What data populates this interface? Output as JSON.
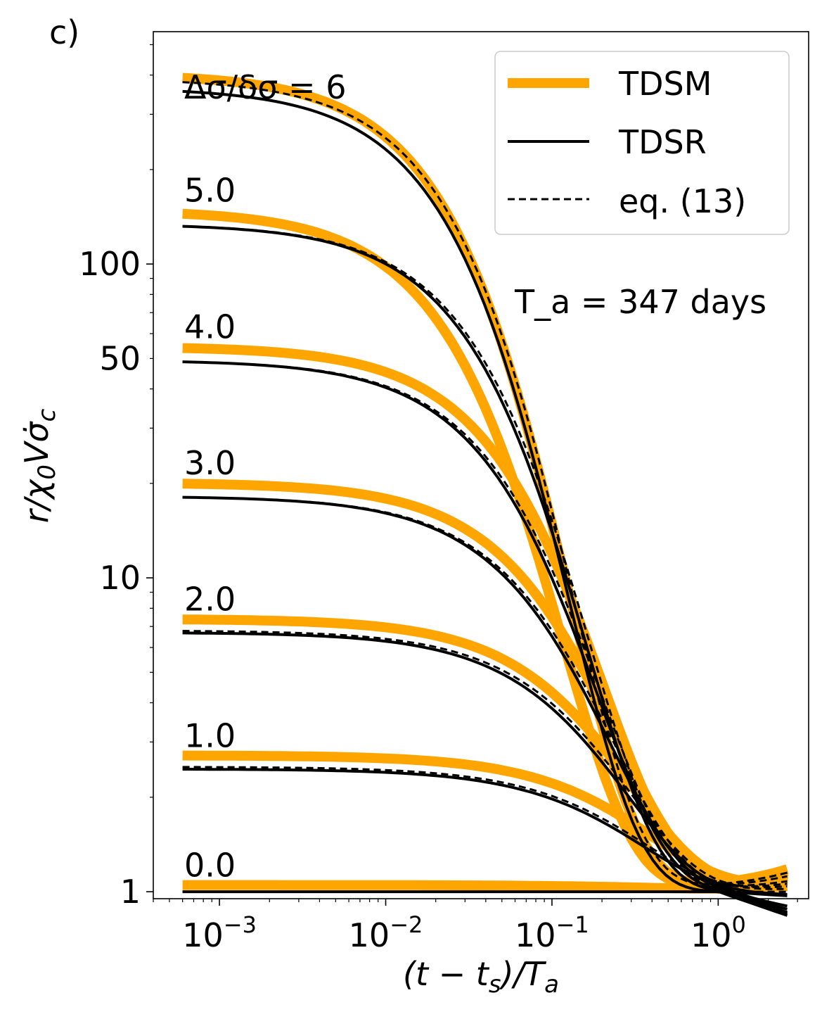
{
  "chart_data": {
    "type": "line",
    "panel_label": "c)",
    "xlabel": "(t − t_s)/T_a",
    "ylabel": "r/χ₀Vσ̇_c",
    "xscale": "log",
    "yscale": "log",
    "xlim": [
      0.0004,
      3.5
    ],
    "ylim": [
      0.95,
      550
    ],
    "x_ticks": [
      {
        "value": 0.001,
        "label": "10",
        "exp": "−3"
      },
      {
        "value": 0.01,
        "label": "10",
        "exp": "−2"
      },
      {
        "value": 0.1,
        "label": "10",
        "exp": "−1"
      },
      {
        "value": 1,
        "label": "10",
        "exp": "0"
      }
    ],
    "y_ticks": [
      {
        "value": 1,
        "label": "1"
      },
      {
        "value": 10,
        "label": "10"
      },
      {
        "value": 50,
        "label": "50"
      },
      {
        "value": 100,
        "label": "100"
      }
    ],
    "annotations": {
      "ratio": "Δσ/δσ = 6",
      "ta": "T_a = 347 days"
    },
    "legend": {
      "placement": "top-right",
      "entries": [
        {
          "name": "TDSM",
          "style": "thick-orange"
        },
        {
          "name": "TDSR",
          "style": "solid-black"
        },
        {
          "name": "eq. (13)",
          "style": "dashed-black"
        }
      ]
    },
    "colors": {
      "tdsm": "#ffa500",
      "tdsr": "#000000",
      "eq13": "#000000"
    },
    "curves": [
      {
        "label": "0.0",
        "tdsm_plateau": 1.05,
        "tdsr_plateau": 1.0,
        "eq13_plateau": 1.0,
        "tdsm_end": 1.04,
        "tdsr_end": 0.97,
        "eq13_end": 1.0
      },
      {
        "label": "1.0",
        "tdsm_plateau": 2.72,
        "tdsr_plateau": 2.46,
        "eq13_plateau": 2.5,
        "tdsm_end": 1.08,
        "tdsr_end": 0.98,
        "eq13_end": 1.02
      },
      {
        "label": "2.0",
        "tdsm_plateau": 7.4,
        "tdsr_plateau": 6.7,
        "eq13_plateau": 6.8,
        "tdsm_end": 1.1,
        "tdsr_end": 0.9,
        "eq13_end": 1.04
      },
      {
        "label": "3.0",
        "tdsm_plateau": 20.1,
        "tdsr_plateau": 18.2,
        "eq13_plateau": 18.2,
        "tdsm_end": 1.12,
        "tdsr_end": 0.88,
        "eq13_end": 1.06
      },
      {
        "label": "4.0",
        "tdsm_plateau": 54.6,
        "tdsr_plateau": 49.4,
        "eq13_plateau": 49.4,
        "tdsm_end": 1.14,
        "tdsr_end": 0.86,
        "eq13_end": 1.08
      },
      {
        "label": "5.0",
        "tdsm_plateau": 148.4,
        "tdsr_plateau": 134.3,
        "eq13_plateau": 134.3,
        "tdsm_end": 1.16,
        "tdsr_end": 0.85,
        "eq13_end": 1.12
      },
      {
        "label": "",
        "tdsm_plateau": 403.4,
        "tdsr_plateau": 365.0,
        "eq13_plateau": 390.0,
        "tdsm_end": 1.18,
        "tdsr_end": 0.84,
        "eq13_end": 1.15
      }
    ]
  }
}
